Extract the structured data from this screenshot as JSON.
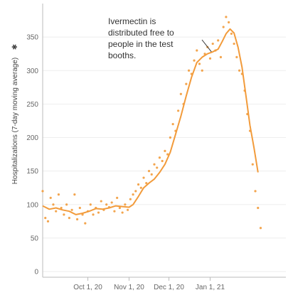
{
  "chart_data": {
    "type": "line",
    "title": "",
    "xlabel": "",
    "ylabel": "Hospitalizations (7-day moving average)",
    "ylabel_icon": "asterisk-icon",
    "ylim": [
      0,
      400
    ],
    "yticks": [
      0,
      50,
      100,
      150,
      200,
      250,
      300,
      350
    ],
    "xlim": [
      "2020-08-28",
      "2021-02-27"
    ],
    "xticks": [
      {
        "date": "2020-10-01",
        "label": "Oct 1, 20"
      },
      {
        "date": "2020-11-01",
        "label": "Nov 1, 20"
      },
      {
        "date": "2020-12-01",
        "label": "Dec 1, 20"
      },
      {
        "date": "2021-01-01",
        "label": "Jan 1, 21"
      }
    ],
    "grid": true,
    "color": "#f29b3b",
    "series": [
      {
        "style": "line",
        "points": [
          [
            "2020-08-28",
            98
          ],
          [
            "2020-09-02",
            93
          ],
          [
            "2020-09-07",
            95
          ],
          [
            "2020-09-12",
            92
          ],
          [
            "2020-09-17",
            90
          ],
          [
            "2020-09-22",
            85
          ],
          [
            "2020-09-27",
            87
          ],
          [
            "2020-10-02",
            90
          ],
          [
            "2020-10-07",
            94
          ],
          [
            "2020-10-12",
            93
          ],
          [
            "2020-10-17",
            95
          ],
          [
            "2020-10-22",
            98
          ],
          [
            "2020-10-27",
            97
          ],
          [
            "2020-11-01",
            96
          ],
          [
            "2020-11-04",
            100
          ],
          [
            "2020-11-08",
            112
          ],
          [
            "2020-11-12",
            125
          ],
          [
            "2020-11-16",
            132
          ],
          [
            "2020-11-20",
            138
          ],
          [
            "2020-11-24",
            148
          ],
          [
            "2020-11-28",
            160
          ],
          [
            "2020-12-02",
            178
          ],
          [
            "2020-12-06",
            205
          ],
          [
            "2020-12-10",
            232
          ],
          [
            "2020-12-14",
            262
          ],
          [
            "2020-12-18",
            290
          ],
          [
            "2020-12-22",
            312
          ],
          [
            "2020-12-26",
            320
          ],
          [
            "2020-12-30",
            325
          ],
          [
            "2021-01-03",
            328
          ],
          [
            "2021-01-07",
            332
          ],
          [
            "2021-01-10",
            343
          ],
          [
            "2021-01-13",
            355
          ],
          [
            "2021-01-16",
            362
          ],
          [
            "2021-01-19",
            356
          ],
          [
            "2021-01-22",
            335
          ],
          [
            "2021-01-25",
            305
          ],
          [
            "2021-01-28",
            262
          ],
          [
            "2021-01-31",
            218
          ],
          [
            "2021-02-03",
            185
          ],
          [
            "2021-02-06",
            148
          ]
        ]
      },
      {
        "style": "scatter",
        "points": [
          [
            "2020-08-28",
            120
          ],
          [
            "2020-08-30",
            80
          ],
          [
            "2020-09-01",
            75
          ],
          [
            "2020-09-03",
            110
          ],
          [
            "2020-09-05",
            100
          ],
          [
            "2020-09-07",
            90
          ],
          [
            "2020-09-09",
            115
          ],
          [
            "2020-09-11",
            95
          ],
          [
            "2020-09-13",
            85
          ],
          [
            "2020-09-15",
            100
          ],
          [
            "2020-09-17",
            80
          ],
          [
            "2020-09-19",
            92
          ],
          [
            "2020-09-21",
            115
          ],
          [
            "2020-09-23",
            78
          ],
          [
            "2020-09-25",
            95
          ],
          [
            "2020-09-27",
            85
          ],
          [
            "2020-09-29",
            72
          ],
          [
            "2020-10-01",
            90
          ],
          [
            "2020-10-03",
            100
          ],
          [
            "2020-10-05",
            85
          ],
          [
            "2020-10-07",
            95
          ],
          [
            "2020-10-09",
            88
          ],
          [
            "2020-10-11",
            105
          ],
          [
            "2020-10-13",
            92
          ],
          [
            "2020-10-15",
            100
          ],
          [
            "2020-10-17",
            96
          ],
          [
            "2020-10-19",
            103
          ],
          [
            "2020-10-21",
            90
          ],
          [
            "2020-10-23",
            110
          ],
          [
            "2020-10-25",
            95
          ],
          [
            "2020-10-27",
            88
          ],
          [
            "2020-10-29",
            100
          ],
          [
            "2020-10-31",
            92
          ],
          [
            "2020-11-02",
            108
          ],
          [
            "2020-11-04",
            115
          ],
          [
            "2020-11-06",
            120
          ],
          [
            "2020-11-08",
            130
          ],
          [
            "2020-11-10",
            125
          ],
          [
            "2020-11-12",
            140
          ],
          [
            "2020-11-14",
            132
          ],
          [
            "2020-11-16",
            150
          ],
          [
            "2020-11-18",
            145
          ],
          [
            "2020-11-20",
            160
          ],
          [
            "2020-11-22",
            155
          ],
          [
            "2020-11-24",
            170
          ],
          [
            "2020-11-26",
            165
          ],
          [
            "2020-11-28",
            180
          ],
          [
            "2020-11-30",
            175
          ],
          [
            "2020-12-02",
            200
          ],
          [
            "2020-12-04",
            220
          ],
          [
            "2020-12-06",
            210
          ],
          [
            "2020-12-08",
            240
          ],
          [
            "2020-12-10",
            265
          ],
          [
            "2020-12-12",
            250
          ],
          [
            "2020-12-14",
            280
          ],
          [
            "2020-12-16",
            300
          ],
          [
            "2020-12-18",
            295
          ],
          [
            "2020-12-20",
            315
          ],
          [
            "2020-12-22",
            330
          ],
          [
            "2020-12-24",
            310
          ],
          [
            "2020-12-26",
            300
          ],
          [
            "2020-12-28",
            325
          ],
          [
            "2020-12-30",
            335
          ],
          [
            "2021-01-01",
            318
          ],
          [
            "2021-01-03",
            340
          ],
          [
            "2021-01-05",
            330
          ],
          [
            "2021-01-07",
            345
          ],
          [
            "2021-01-09",
            320
          ],
          [
            "2021-01-11",
            365
          ],
          [
            "2021-01-13",
            380
          ],
          [
            "2021-01-15",
            372
          ],
          [
            "2021-01-17",
            355
          ],
          [
            "2021-01-19",
            340
          ],
          [
            "2021-01-21",
            320
          ],
          [
            "2021-01-23",
            300
          ],
          [
            "2021-01-25",
            295
          ],
          [
            "2021-01-27",
            270
          ],
          [
            "2021-01-29",
            235
          ],
          [
            "2021-01-31",
            210
          ],
          [
            "2021-02-02",
            160
          ],
          [
            "2021-02-04",
            120
          ],
          [
            "2021-02-06",
            95
          ],
          [
            "2021-02-08",
            65
          ]
        ]
      }
    ],
    "annotations": [
      {
        "lines": [
          "Ivermectin is",
          "distributed free to",
          "people in the test",
          "booths."
        ],
        "points_to": [
          "2021-01-03",
          328
        ]
      }
    ]
  }
}
